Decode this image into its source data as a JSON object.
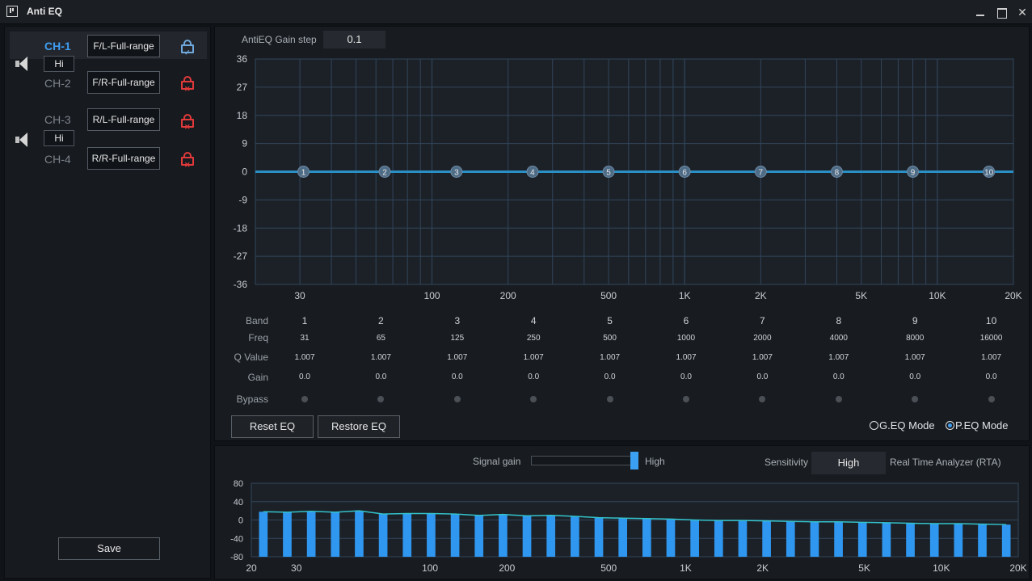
{
  "window": {
    "title": "Anti EQ"
  },
  "channels": {
    "groups": [
      {
        "hi_label": "Hi",
        "items": [
          {
            "label": "CH-1",
            "name": "F/L-Full-range",
            "status": "unlocked",
            "active": true
          },
          {
            "label": "CH-2",
            "name": "F/R-Full-range",
            "status": "locked",
            "active": false
          }
        ]
      },
      {
        "hi_label": "Hi",
        "items": [
          {
            "label": "CH-3",
            "name": "R/L-Full-range",
            "status": "locked",
            "active": false
          },
          {
            "label": "CH-4",
            "name": "R/R-Full-range",
            "status": "locked",
            "active": false
          }
        ]
      }
    ]
  },
  "save_label": "Save",
  "eq": {
    "gain_step_label": "AntiEQ Gain step",
    "gain_step_value": "0.1",
    "y_ticks": [
      "36",
      "27",
      "18",
      "9",
      "0",
      "-9",
      "-18",
      "-27",
      "-36"
    ],
    "y_range": [
      -36,
      36
    ],
    "x_range_hz": [
      20,
      20000
    ],
    "x_scale": "log",
    "x_ticks": [
      {
        "hz": 30,
        "label": "30"
      },
      {
        "hz": 100,
        "label": "100"
      },
      {
        "hz": 200,
        "label": "200"
      },
      {
        "hz": 500,
        "label": "500"
      },
      {
        "hz": 1000,
        "label": "1K"
      },
      {
        "hz": 2000,
        "label": "2K"
      },
      {
        "hz": 5000,
        "label": "5K"
      },
      {
        "hz": 10000,
        "label": "10K"
      },
      {
        "hz": 20000,
        "label": "20K"
      }
    ],
    "curve_gain_db": 0,
    "row_labels": {
      "band": "Band",
      "freq": "Freq",
      "q": "Q Value",
      "gain": "Gain",
      "bypass": "Bypass"
    },
    "bands": [
      {
        "band": "1",
        "freq": "31",
        "q": "1.007",
        "gain": "0.0"
      },
      {
        "band": "2",
        "freq": "65",
        "q": "1.007",
        "gain": "0.0"
      },
      {
        "band": "3",
        "freq": "125",
        "q": "1.007",
        "gain": "0.0"
      },
      {
        "band": "4",
        "freq": "250",
        "q": "1.007",
        "gain": "0.0"
      },
      {
        "band": "5",
        "freq": "500",
        "q": "1.007",
        "gain": "0.0"
      },
      {
        "band": "6",
        "freq": "1000",
        "q": "1.007",
        "gain": "0.0"
      },
      {
        "band": "7",
        "freq": "2000",
        "q": "1.007",
        "gain": "0.0"
      },
      {
        "band": "8",
        "freq": "4000",
        "q": "1.007",
        "gain": "0.0"
      },
      {
        "band": "9",
        "freq": "8000",
        "q": "1.007",
        "gain": "0.0"
      },
      {
        "band": "10",
        "freq": "16000",
        "q": "1.007",
        "gain": "0.0"
      }
    ],
    "reset_label": "Reset EQ",
    "restore_label": "Restore EQ",
    "modes": [
      {
        "label": "G.EQ Mode",
        "selected": false
      },
      {
        "label": "P.EQ Mode",
        "selected": true
      }
    ]
  },
  "rta": {
    "signal_gain_label": "Signal gain",
    "signal_gain_level": 0.95,
    "signal_gain_value": "High",
    "sensitivity_label": "Sensitivity",
    "sensitivity_value": "High",
    "analyzer_label": "Real Time Analyzer (RTA)",
    "y_ticks": [
      "80",
      "40",
      "0",
      "-40",
      "-80"
    ],
    "y_range": [
      -80,
      80
    ],
    "x_ticks": [
      {
        "hz": 20,
        "label": "20"
      },
      {
        "hz": 30,
        "label": "30"
      },
      {
        "hz": 100,
        "label": "100"
      },
      {
        "hz": 200,
        "label": "200"
      },
      {
        "hz": 500,
        "label": "500"
      },
      {
        "hz": 1000,
        "label": "1K"
      },
      {
        "hz": 2000,
        "label": "2K"
      },
      {
        "hz": 5000,
        "label": "5K"
      },
      {
        "hz": 10000,
        "label": "10K"
      },
      {
        "hz": 20000,
        "label": "20K"
      }
    ],
    "bar_values": [
      18,
      17,
      19,
      17,
      20,
      13,
      14,
      14,
      13,
      10,
      12,
      9,
      10,
      8,
      5,
      4,
      3,
      2,
      0,
      -1,
      -1,
      -2,
      -3,
      -4,
      -4,
      -5,
      -6,
      -7,
      -8,
      -8,
      -9,
      -10
    ],
    "colors": {
      "bars": "#2f97f0",
      "line": "#33c2c9"
    }
  },
  "colors": {
    "accent": "#3f9df0",
    "curve": "#2a8fc5",
    "grid": "#31455a",
    "locked": "#e23a3a",
    "unlocked": "#6fa8dc"
  }
}
